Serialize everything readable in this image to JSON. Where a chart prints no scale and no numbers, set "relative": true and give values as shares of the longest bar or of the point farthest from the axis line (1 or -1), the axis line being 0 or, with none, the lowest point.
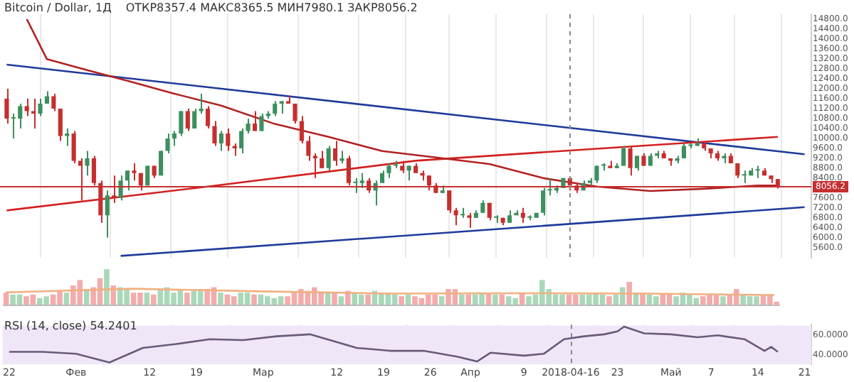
{
  "chart_data": [
    {
      "type": "candlestick",
      "title": "Bitcoin / Dollar, 1Д",
      "annotations": [
        "ОТКР8357.4 МАКС8365.5 МИН7980.1 ЗАКР8056.2"
      ],
      "tick_labels": "y",
      "grid": "x",
      "xlim": [
        "2018-01-21",
        "2018-05-22"
      ],
      "xticks": [
        {
          "value": "2018-01-22",
          "label": null
        },
        {
          "value": "2018-02-01",
          "label": null
        },
        {
          "value": "2018-02-12",
          "label": null
        },
        {
          "value": "2018-02-19",
          "label": null
        },
        {
          "value": "2018-03-01",
          "label": null
        },
        {
          "value": "2018-03-12",
          "label": null
        },
        {
          "value": "2018-03-19",
          "label": null
        },
        {
          "value": "2018-03-26",
          "label": null
        },
        {
          "value": "2018-04-01",
          "label": null
        },
        {
          "value": "2018-04-09",
          "label": null
        },
        {
          "value": "2018-04-16",
          "label": null
        },
        {
          "value": "2018-04-23",
          "label": null
        },
        {
          "value": "2018-05-01",
          "label": null
        },
        {
          "value": "2018-05-07",
          "label": null
        },
        {
          "value": "2018-05-14",
          "label": null
        },
        {
          "value": "2018-05-21",
          "label": null
        }
      ],
      "ylim": [
        5200,
        15000
      ],
      "yticks": [
        {
          "value": 5600,
          "label": "5600.0"
        },
        {
          "value": 6000,
          "label": "6000.0"
        },
        {
          "value": 6400,
          "label": "6400.0"
        },
        {
          "value": 6800,
          "label": "6800.0"
        },
        {
          "value": 7200,
          "label": "7200.0"
        },
        {
          "value": 7600,
          "label": "7600.0"
        },
        {
          "value": 8000,
          "label": null
        },
        {
          "value": 8400,
          "label": "8400.0"
        },
        {
          "value": 8800,
          "label": "8800.0"
        },
        {
          "value": 9200,
          "label": "9200.0"
        },
        {
          "value": 9600,
          "label": "9600.0"
        },
        {
          "value": 10000,
          "label": "10000.0"
        },
        {
          "value": 10400,
          "label": "10400.0"
        },
        {
          "value": 10800,
          "label": "10800.0"
        },
        {
          "value": 11200,
          "label": "11200.0"
        },
        {
          "value": 11600,
          "label": "11600.0"
        },
        {
          "value": 12000,
          "label": "12000.0"
        },
        {
          "value": 12400,
          "label": "12400.0"
        },
        {
          "value": 12800,
          "label": "12800.0"
        },
        {
          "value": 13200,
          "label": "13200.0"
        },
        {
          "value": 13600,
          "label": "13600.0"
        },
        {
          "value": 14000,
          "label": "14000.0"
        },
        {
          "value": 14400,
          "label": "14400.0"
        },
        {
          "value": 14800,
          "label": "14800.0"
        }
      ],
      "x": [
        "2018-01-22",
        "2018-01-23",
        "2018-01-24",
        "2018-01-25",
        "2018-01-26",
        "2018-01-27",
        "2018-01-28",
        "2018-01-29",
        "2018-01-30",
        "2018-01-31",
        "2018-02-01",
        "2018-02-02",
        "2018-02-03",
        "2018-02-04",
        "2018-02-05",
        "2018-02-06",
        "2018-02-07",
        "2018-02-08",
        "2018-02-09",
        "2018-02-10",
        "2018-02-11",
        "2018-02-12",
        "2018-02-13",
        "2018-02-14",
        "2018-02-15",
        "2018-02-16",
        "2018-02-17",
        "2018-02-18",
        "2018-02-19",
        "2018-02-20",
        "2018-02-21",
        "2018-02-22",
        "2018-02-23",
        "2018-02-24",
        "2018-02-25",
        "2018-02-26",
        "2018-02-27",
        "2018-02-28",
        "2018-03-01",
        "2018-03-02",
        "2018-03-03",
        "2018-03-04",
        "2018-03-05",
        "2018-03-06",
        "2018-03-07",
        "2018-03-08",
        "2018-03-09",
        "2018-03-10",
        "2018-03-11",
        "2018-03-12",
        "2018-03-13",
        "2018-03-14",
        "2018-03-15",
        "2018-03-16",
        "2018-03-17",
        "2018-03-18",
        "2018-03-19",
        "2018-03-20",
        "2018-03-21",
        "2018-03-22",
        "2018-03-23",
        "2018-03-24",
        "2018-03-25",
        "2018-03-26",
        "2018-03-27",
        "2018-03-28",
        "2018-03-29",
        "2018-03-30",
        "2018-03-31",
        "2018-04-01",
        "2018-04-02",
        "2018-04-03",
        "2018-04-04",
        "2018-04-05",
        "2018-04-06",
        "2018-04-07",
        "2018-04-08",
        "2018-04-09",
        "2018-04-10",
        "2018-04-11",
        "2018-04-12",
        "2018-04-13",
        "2018-04-14",
        "2018-04-15",
        "2018-04-16",
        "2018-04-17",
        "2018-04-18",
        "2018-04-19",
        "2018-04-20",
        "2018-04-21",
        "2018-04-22",
        "2018-04-23",
        "2018-04-24",
        "2018-04-25",
        "2018-04-26",
        "2018-04-27",
        "2018-04-28",
        "2018-04-29",
        "2018-04-30",
        "2018-05-01",
        "2018-05-02",
        "2018-05-03",
        "2018-05-04",
        "2018-05-05",
        "2018-05-06",
        "2018-05-07",
        "2018-05-08",
        "2018-05-09",
        "2018-05-10",
        "2018-05-11",
        "2018-05-12",
        "2018-05-13",
        "2018-05-14",
        "2018-05-15",
        "2018-05-16",
        "2018-05-17"
      ],
      "ohlc": [
        [
          11600,
          12000,
          10600,
          10800
        ],
        [
          10800,
          11000,
          10000,
          10800
        ],
        [
          10800,
          11400,
          10400,
          11300
        ],
        [
          11300,
          11600,
          10900,
          11100
        ],
        [
          11100,
          11600,
          10400,
          11000
        ],
        [
          11000,
          11600,
          10900,
          11400
        ],
        [
          11400,
          11900,
          11400,
          11700
        ],
        [
          11700,
          11800,
          11100,
          11200
        ],
        [
          11200,
          11200,
          9900,
          10100
        ],
        [
          10100,
          10400,
          9700,
          10200
        ],
        [
          10200,
          10300,
          9000,
          9100
        ],
        [
          9100,
          9200,
          7500,
          8900
        ],
        [
          8900,
          9500,
          8500,
          9200
        ],
        [
          9200,
          9300,
          8100,
          8200
        ],
        [
          8200,
          8300,
          6600,
          6900
        ],
        [
          6900,
          7900,
          6000,
          7700
        ],
        [
          7700,
          8500,
          7400,
          7600
        ],
        [
          7600,
          8500,
          7500,
          8300
        ],
        [
          8300,
          8700,
          7900,
          8700
        ],
        [
          8700,
          9000,
          8300,
          8600
        ],
        [
          8600,
          8600,
          7900,
          8100
        ],
        [
          8100,
          8900,
          8100,
          8900
        ],
        [
          8900,
          8900,
          8400,
          8500
        ],
        [
          8500,
          9500,
          8500,
          9500
        ],
        [
          9500,
          10200,
          9400,
          10000
        ],
        [
          10000,
          10300,
          9700,
          10200
        ],
        [
          10200,
          11100,
          10100,
          11100
        ],
        [
          11100,
          11200,
          10300,
          10400
        ],
        [
          10400,
          11200,
          10400,
          11100
        ],
        [
          11100,
          11800,
          11000,
          11200
        ],
        [
          11200,
          11300,
          10400,
          10500
        ],
        [
          10500,
          10700,
          9700,
          9800
        ],
        [
          9800,
          10300,
          9500,
          10200
        ],
        [
          10200,
          10400,
          9500,
          9700
        ],
        [
          9700,
          9800,
          9300,
          9600
        ],
        [
          9600,
          10400,
          9400,
          10300
        ],
        [
          10300,
          10800,
          10200,
          10600
        ],
        [
          10600,
          11100,
          10300,
          10300
        ],
        [
          10300,
          11000,
          10300,
          10900
        ],
        [
          10900,
          11100,
          10800,
          11000
        ],
        [
          11000,
          11500,
          10900,
          11400
        ],
        [
          11400,
          11500,
          11000,
          11500
        ],
        [
          11500,
          11700,
          11400,
          11400
        ],
        [
          11400,
          11400,
          10600,
          10700
        ],
        [
          10700,
          10900,
          9800,
          9900
        ],
        [
          9900,
          10100,
          9100,
          9300
        ],
        [
          9300,
          9400,
          8400,
          9200
        ],
        [
          9200,
          9500,
          8800,
          8800
        ],
        [
          8800,
          9700,
          8700,
          9600
        ],
        [
          9600,
          9900,
          8900,
          9100
        ],
        [
          9100,
          9500,
          9000,
          9200
        ],
        [
          9200,
          9300,
          8100,
          8200
        ],
        [
          8200,
          8400,
          7800,
          8200
        ],
        [
          8200,
          8600,
          8000,
          8300
        ],
        [
          8300,
          8400,
          7800,
          7900
        ],
        [
          7900,
          8300,
          7300,
          8200
        ],
        [
          8200,
          8700,
          8200,
          8600
        ],
        [
          8600,
          9000,
          8400,
          8900
        ],
        [
          8900,
          9100,
          8800,
          8900
        ],
        [
          8900,
          9100,
          8600,
          8700
        ],
        [
          8700,
          8900,
          8300,
          8900
        ],
        [
          8900,
          9000,
          8600,
          8600
        ],
        [
          8600,
          8700,
          8300,
          8500
        ],
        [
          8500,
          8500,
          7900,
          8100
        ],
        [
          8100,
          8200,
          7800,
          7800
        ],
        [
          7800,
          8100,
          7800,
          7900
        ],
        [
          7900,
          7900,
          7000,
          7100
        ],
        [
          7100,
          7200,
          6500,
          6900
        ],
        [
          6900,
          7200,
          6800,
          6900
        ],
        [
          6900,
          7000,
          6400,
          6800
        ],
        [
          6800,
          7100,
          6800,
          7000
        ],
        [
          7000,
          7500,
          7000,
          7400
        ],
        [
          7400,
          7400,
          6700,
          6800
        ],
        [
          6800,
          6900,
          6600,
          6800
        ],
        [
          6800,
          6800,
          6500,
          6600
        ],
        [
          6600,
          7100,
          6600,
          6900
        ],
        [
          6900,
          7100,
          6900,
          7000
        ],
        [
          7000,
          7200,
          6600,
          6800
        ],
        [
          6800,
          6900,
          6700,
          6800
        ],
        [
          6800,
          7000,
          6800,
          7000
        ],
        [
          7000,
          8000,
          6900,
          7900
        ],
        [
          7900,
          8400,
          7700,
          7900
        ],
        [
          7900,
          8100,
          7800,
          8000
        ],
        [
          8000,
          8400,
          8000,
          8400
        ],
        [
          8400,
          8400,
          7900,
          8100
        ],
        [
          8100,
          8200,
          7800,
          7900
        ],
        [
          7900,
          8300,
          7900,
          8200
        ],
        [
          8200,
          8400,
          8100,
          8300
        ],
        [
          8300,
          8900,
          8200,
          8900
        ],
        [
          8900,
          9000,
          8700,
          8900
        ],
        [
          8900,
          9100,
          8800,
          8800
        ],
        [
          8800,
          9000,
          8800,
          8900
        ],
        [
          8900,
          9700,
          8900,
          9600
        ],
        [
          9600,
          9700,
          8500,
          8800
        ],
        [
          8800,
          9300,
          8700,
          9300
        ],
        [
          9300,
          9400,
          8900,
          8900
        ],
        [
          8900,
          9400,
          8900,
          9300
        ],
        [
          9300,
          9500,
          9200,
          9400
        ],
        [
          9400,
          9500,
          9200,
          9200
        ],
        [
          9200,
          9200,
          8900,
          9100
        ],
        [
          9100,
          9300,
          9000,
          9200
        ],
        [
          9200,
          9800,
          9200,
          9700
        ],
        [
          9700,
          9800,
          9600,
          9700
        ],
        [
          9700,
          10000,
          9700,
          9800
        ],
        [
          9800,
          9900,
          9500,
          9600
        ],
        [
          9600,
          9600,
          9200,
          9400
        ],
        [
          9400,
          9500,
          9100,
          9200
        ],
        [
          9200,
          9400,
          9000,
          9300
        ],
        [
          9300,
          9400,
          9000,
          9000
        ],
        [
          9000,
          9000,
          8400,
          8500
        ],
        [
          8500,
          8700,
          8200,
          8500
        ],
        [
          8500,
          8800,
          8500,
          8700
        ],
        [
          8700,
          8900,
          8400,
          8700
        ],
        [
          8700,
          8800,
          8500,
          8500
        ],
        [
          8500,
          8500,
          8200,
          8357.4
        ],
        [
          8357.4,
          8365.5,
          7980.1,
          8056.2
        ]
      ],
      "colors": [
        "#c62f2f",
        "#3d8f5f",
        "#3d8f5f",
        "#c62f2f",
        "#c62f2f",
        "#3d8f5f",
        "#3d8f5f",
        "#c62f2f",
        "#c62f2f",
        "#3d8f5f",
        "#c62f2f",
        "#c62f2f",
        "#3d8f5f",
        "#c62f2f",
        "#c62f2f",
        "#3d8f5f",
        "#c62f2f",
        "#3d8f5f",
        "#3d8f5f",
        "#c62f2f",
        "#c62f2f",
        "#3d8f5f",
        "#c62f2f",
        "#3d8f5f",
        "#3d8f5f",
        "#3d8f5f",
        "#3d8f5f",
        "#c62f2f",
        "#3d8f5f",
        "#3d8f5f",
        "#c62f2f",
        "#c62f2f",
        "#3d8f5f",
        "#c62f2f",
        "#c62f2f",
        "#3d8f5f",
        "#3d8f5f",
        "#c62f2f",
        "#3d8f5f",
        "#3d8f5f",
        "#3d8f5f",
        "#3d8f5f",
        "#c62f2f",
        "#c62f2f",
        "#c62f2f",
        "#c62f2f",
        "#c62f2f",
        "#c62f2f",
        "#3d8f5f",
        "#c62f2f",
        "#3d8f5f",
        "#c62f2f",
        "#3d8f5f",
        "#3d8f5f",
        "#c62f2f",
        "#3d8f5f",
        "#3d8f5f",
        "#3d8f5f",
        "#3d8f5f",
        "#c62f2f",
        "#3d8f5f",
        "#c62f2f",
        "#c62f2f",
        "#c62f2f",
        "#c62f2f",
        "#3d8f5f",
        "#c62f2f",
        "#c62f2f",
        "#3d8f5f",
        "#c62f2f",
        "#3d8f5f",
        "#3d8f5f",
        "#c62f2f",
        "#3d8f5f",
        "#c62f2f",
        "#3d8f5f",
        "#3d8f5f",
        "#c62f2f",
        "#3d8f5f",
        "#3d8f5f",
        "#3d8f5f",
        "#3d8f5f",
        "#3d8f5f",
        "#3d8f5f",
        "#c62f2f",
        "#c62f2f",
        "#3d8f5f",
        "#3d8f5f",
        "#3d8f5f",
        "#3d8f5f",
        "#c62f2f",
        "#3d8f5f",
        "#3d8f5f",
        "#c62f2f",
        "#3d8f5f",
        "#c62f2f",
        "#3d8f5f",
        "#3d8f5f",
        "#c62f2f",
        "#c62f2f",
        "#3d8f5f",
        "#3d8f5f",
        "#3d8f5f",
        "#3d8f5f",
        "#c62f2f",
        "#c62f2f",
        "#c62f2f",
        "#3d8f5f",
        "#c62f2f",
        "#c62f2f",
        "#3d8f5f",
        "#3d8f5f",
        "#3d8f5f",
        "#c62f2f",
        "#c62f2f",
        "#c62f2f"
      ],
      "ref_lines": [
        {
          "axis": "y",
          "value": 8056.2,
          "label": "8056.2",
          "color": "#c62f2f"
        },
        {
          "axis": "x",
          "value": "2018-04-16",
          "line_style": "dashed",
          "color": "#8a8a8a"
        }
      ],
      "series": [
        {
          "type": "line",
          "color": "#b22222",
          "x": [
            "2018-01-25",
            "2018-01-28",
            "2018-02-03",
            "2018-02-09",
            "2018-02-16",
            "2018-02-23",
            "2018-03-03",
            "2018-03-11",
            "2018-03-19",
            "2018-03-27",
            "2018-04-04",
            "2018-04-12",
            "2018-04-20",
            "2018-04-28",
            "2018-05-06",
            "2018-05-14",
            "2018-05-17"
          ],
          "values": [
            14800,
            13190,
            12750,
            12320,
            11800,
            11320,
            10580,
            10060,
            9490,
            9230,
            8970,
            8400,
            8060,
            7880,
            7970,
            8100,
            8100
          ]
        },
        {
          "type": "line",
          "color": "#d32020",
          "x": [
            "2018-01-22",
            "2018-02-21",
            "2018-03-24",
            "2018-04-22",
            "2018-05-17"
          ],
          "values": [
            7100,
            8060,
            9100,
            9620,
            10060
          ]
        },
        {
          "type": "line",
          "color": "#1f3a9a",
          "x": [
            "2018-01-22",
            "2018-05-21"
          ],
          "values": [
            12970,
            9360
          ]
        },
        {
          "type": "line",
          "color": "#1f3a9a",
          "x": [
            "2018-02-08",
            "2018-05-21"
          ],
          "values": [
            5270,
            7230
          ]
        }
      ]
    },
    {
      "type": "bar",
      "relative": true,
      "tick_labels": false,
      "categories": [
        null,
        null,
        null,
        null,
        null,
        null,
        null,
        null,
        null,
        null,
        null,
        null,
        null,
        null,
        null,
        null,
        null,
        null,
        null,
        null,
        null,
        null,
        null,
        null,
        null,
        null,
        null,
        null,
        null,
        null,
        null,
        null,
        null,
        null,
        null,
        null,
        null,
        null,
        null,
        null,
        null,
        null,
        null,
        null,
        null,
        null,
        null,
        null,
        null,
        null,
        null,
        null,
        null,
        null,
        null,
        null,
        null,
        null,
        null,
        null,
        null,
        null,
        null,
        null,
        null,
        null,
        null,
        null,
        null,
        null,
        null,
        null,
        null,
        null,
        null,
        null,
        null,
        null,
        null,
        null,
        null,
        null,
        null,
        null,
        null,
        null,
        null,
        null,
        null,
        null,
        null,
        null,
        null,
        null,
        null,
        null,
        null,
        null,
        null,
        null,
        null,
        null,
        null,
        null,
        null,
        null,
        null,
        null,
        null,
        null,
        null,
        null,
        null,
        null,
        null,
        null
      ],
      "values": [
        0.35,
        0.3,
        0.3,
        0.25,
        0.3,
        0.2,
        0.25,
        0.3,
        0.4,
        0.35,
        0.55,
        0.7,
        0.45,
        0.5,
        0.75,
        1,
        0.55,
        0.5,
        0.45,
        0.35,
        0.35,
        0.35,
        0.3,
        0.45,
        0.5,
        0.35,
        0.45,
        0.35,
        0.4,
        0.45,
        0.45,
        0.5,
        0.35,
        0.3,
        0.25,
        0.35,
        0.35,
        0.3,
        0.3,
        0.25,
        0.2,
        0.25,
        0.25,
        0.35,
        0.45,
        0.4,
        0.5,
        0.35,
        0.35,
        0.35,
        0.25,
        0.4,
        0.35,
        0.3,
        0.3,
        0.4,
        0.35,
        0.35,
        0.3,
        0.25,
        0.3,
        0.25,
        0.2,
        0.3,
        0.3,
        0.25,
        0.45,
        0.45,
        0.3,
        0.3,
        0.3,
        0.35,
        0.35,
        0.3,
        0.3,
        0.25,
        0.2,
        0.35,
        0.25,
        0.3,
        0.7,
        0.45,
        0.3,
        0.3,
        0.3,
        0.3,
        0.3,
        0.3,
        0.35,
        0.3,
        0.25,
        0.3,
        0.5,
        0.65,
        0.35,
        0.35,
        0.3,
        0.25,
        0.3,
        0.3,
        0.25,
        0.35,
        0.3,
        0.2,
        0.25,
        0.3,
        0.3,
        0.25,
        0.3,
        0.45,
        0.3,
        0.25,
        0.25,
        0.3,
        0.3,
        0.1
      ],
      "colors": [
        "#f3abab",
        "#a9d8b9",
        "#a9d8b9",
        "#f3abab",
        "#f3abab",
        "#a9d8b9",
        "#a9d8b9",
        "#f3abab",
        "#f3abab",
        "#a9d8b9",
        "#f3abab",
        "#f3abab",
        "#a9d8b9",
        "#f3abab",
        "#f3abab",
        "#a9d8b9",
        "#f3abab",
        "#a9d8b9",
        "#a9d8b9",
        "#f3abab",
        "#f3abab",
        "#a9d8b9",
        "#f3abab",
        "#a9d8b9",
        "#a9d8b9",
        "#a9d8b9",
        "#a9d8b9",
        "#f3abab",
        "#a9d8b9",
        "#a9d8b9",
        "#f3abab",
        "#f3abab",
        "#a9d8b9",
        "#f3abab",
        "#f3abab",
        "#a9d8b9",
        "#a9d8b9",
        "#f3abab",
        "#a9d8b9",
        "#a9d8b9",
        "#a9d8b9",
        "#a9d8b9",
        "#f3abab",
        "#f3abab",
        "#f3abab",
        "#f3abab",
        "#f3abab",
        "#f3abab",
        "#a9d8b9",
        "#f3abab",
        "#a9d8b9",
        "#f3abab",
        "#a9d8b9",
        "#a9d8b9",
        "#f3abab",
        "#a9d8b9",
        "#a9d8b9",
        "#a9d8b9",
        "#a9d8b9",
        "#f3abab",
        "#a9d8b9",
        "#f3abab",
        "#f3abab",
        "#f3abab",
        "#f3abab",
        "#a9d8b9",
        "#f3abab",
        "#f3abab",
        "#a9d8b9",
        "#f3abab",
        "#a9d8b9",
        "#a9d8b9",
        "#f3abab",
        "#a9d8b9",
        "#f3abab",
        "#a9d8b9",
        "#a9d8b9",
        "#f3abab",
        "#a9d8b9",
        "#a9d8b9",
        "#a9d8b9",
        "#a9d8b9",
        "#a9d8b9",
        "#a9d8b9",
        "#f3abab",
        "#f3abab",
        "#a9d8b9",
        "#a9d8b9",
        "#a9d8b9",
        "#a9d8b9",
        "#f3abab",
        "#a9d8b9",
        "#a9d8b9",
        "#f3abab",
        "#a9d8b9",
        "#f3abab",
        "#a9d8b9",
        "#a9d8b9",
        "#f3abab",
        "#f3abab",
        "#a9d8b9",
        "#a9d8b9",
        "#a9d8b9",
        "#a9d8b9",
        "#f3abab",
        "#f3abab",
        "#f3abab",
        "#a9d8b9",
        "#f3abab",
        "#f3abab",
        "#a9d8b9",
        "#a9d8b9",
        "#a9d8b9",
        "#f3abab",
        "#f3abab",
        "#f3abab"
      ],
      "grid": false
    },
    {
      "type": "line",
      "relative": true,
      "tick_labels": false,
      "color": "#f0b080",
      "categories": [
        null,
        null,
        null,
        null,
        null,
        null,
        null
      ],
      "values": [
        0.78,
        1,
        0.84,
        0.71,
        0.73,
        0.71,
        0.62
      ]
    },
    {
      "type": "line",
      "title": "RSI (14, close) 54.2401",
      "color": "#6a5a7a",
      "grid": "x",
      "xlim": [
        "2018-01-21",
        "2018-05-22"
      ],
      "xticks": [
        {
          "value": "2018-01-22",
          "label": "22"
        },
        {
          "value": "2018-02-01",
          "label": "Фев"
        },
        {
          "value": "2018-02-12",
          "label": "12"
        },
        {
          "value": "2018-02-19",
          "label": "19"
        },
        {
          "value": "2018-03-01",
          "label": "Мар"
        },
        {
          "value": "2018-03-12",
          "label": "12"
        },
        {
          "value": "2018-03-19",
          "label": "19"
        },
        {
          "value": "2018-03-26",
          "label": "26"
        },
        {
          "value": "2018-04-01",
          "label": "Апр"
        },
        {
          "value": "2018-04-09",
          "label": "9"
        },
        {
          "value": "2018-04-16",
          "label": "2018-04-16"
        },
        {
          "value": "2018-04-23",
          "label": "23"
        },
        {
          "value": "2018-05-01",
          "label": "Май"
        },
        {
          "value": "2018-05-07",
          "label": "7"
        },
        {
          "value": "2018-05-14",
          "label": "14"
        },
        {
          "value": "2018-05-21",
          "label": "21"
        }
      ],
      "ylim": [
        30,
        71
      ],
      "yticks": [
        {
          "value": 60,
          "label": "60.0000"
        },
        {
          "value": 40,
          "label": "40.0000"
        }
      ],
      "bands": [
        {
          "axis": "y",
          "from": 30,
          "to": 70,
          "color": "#efe7f8"
        }
      ],
      "ref_lines": [
        {
          "axis": "x",
          "value": "2018-04-16",
          "line_style": "dashed",
          "color": "#8a8a8a"
        }
      ],
      "x": [
        "2018-01-22",
        "2018-01-27",
        "2018-02-01",
        "2018-02-06",
        "2018-02-11",
        "2018-02-16",
        "2018-02-21",
        "2018-02-26",
        "2018-03-03",
        "2018-03-08",
        "2018-03-15",
        "2018-03-20",
        "2018-03-25",
        "2018-03-30",
        "2018-04-02",
        "2018-04-04",
        "2018-04-09",
        "2018-04-12",
        "2018-04-15",
        "2018-04-18",
        "2018-04-21",
        "2018-04-23",
        "2018-04-24",
        "2018-04-27",
        "2018-05-01",
        "2018-05-05",
        "2018-05-08",
        "2018-05-12",
        "2018-05-15",
        "2018-05-16",
        "2018-05-17"
      ],
      "values": [
        43,
        43,
        41,
        32,
        47,
        51,
        56,
        55,
        59,
        61,
        47,
        44,
        44,
        38,
        33,
        42,
        39,
        41,
        56,
        59,
        61,
        64,
        69,
        62,
        61,
        58,
        60,
        56,
        44,
        48,
        43
      ]
    }
  ]
}
